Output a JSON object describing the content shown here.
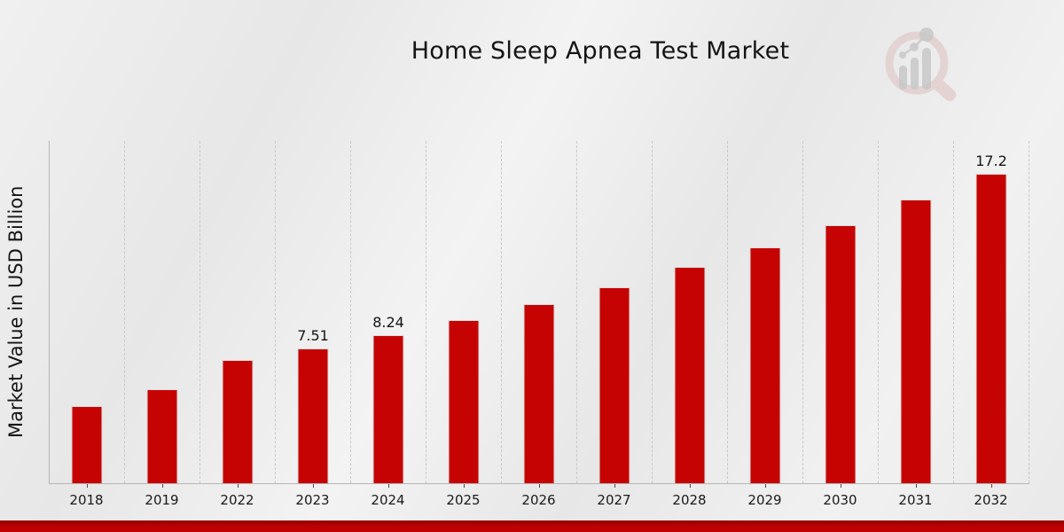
{
  "header": {
    "title": "Home Sleep Apnea Test Market",
    "logo": "market-research-future-logo"
  },
  "chart_data": {
    "type": "bar",
    "title": "Home Sleep Apnea Test Market",
    "xlabel": "",
    "ylabel": "Market Value in USD Billion",
    "categories": [
      "2018",
      "2019",
      "2022",
      "2023",
      "2024",
      "2025",
      "2026",
      "2027",
      "2028",
      "2029",
      "2030",
      "2031",
      "2032"
    ],
    "values": [
      4.3,
      5.2,
      6.85,
      7.51,
      8.24,
      9.05,
      9.95,
      10.9,
      12.0,
      13.1,
      14.35,
      15.75,
      17.2
    ],
    "data_labels": {
      "2023": "7.51",
      "2024": "8.24",
      "2032": "17.2"
    },
    "ylim": [
      0,
      19
    ],
    "y_ticks_visible": false,
    "grid": "vertical-dashed",
    "legend": "none",
    "bar_color": "#c60303",
    "bar_border_color": "#dcdcdc",
    "axis_color": "#b5b5b5",
    "grid_color": "#c9c9c9",
    "label_color": "#141414",
    "background_color": "#ebebeb",
    "footer_band_color": "#b80101"
  }
}
